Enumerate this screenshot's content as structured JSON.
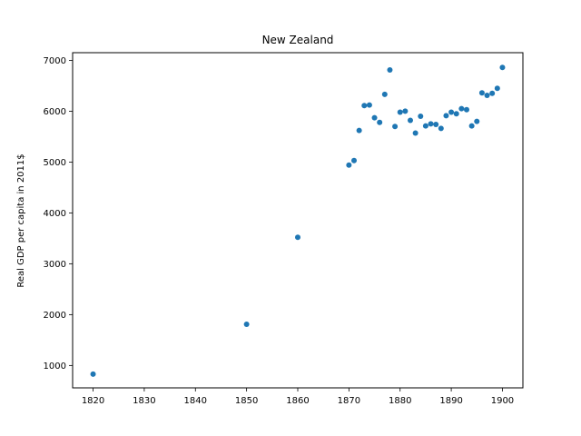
{
  "chart_data": {
    "type": "scatter",
    "title": "New Zealand",
    "xlabel": "",
    "ylabel": "Real GDP per capita in 2011$",
    "xlim": [
      1816,
      1904
    ],
    "ylim": [
      560,
      7150
    ],
    "xticks": [
      1820,
      1830,
      1840,
      1850,
      1860,
      1870,
      1880,
      1890,
      1900
    ],
    "yticks": [
      1000,
      2000,
      3000,
      4000,
      5000,
      6000,
      7000
    ],
    "grid": false,
    "color": "#1f77b4",
    "points": [
      {
        "x": 1820,
        "y": 830
      },
      {
        "x": 1850,
        "y": 1810
      },
      {
        "x": 1860,
        "y": 3520
      },
      {
        "x": 1870,
        "y": 4940
      },
      {
        "x": 1871,
        "y": 5030
      },
      {
        "x": 1872,
        "y": 5620
      },
      {
        "x": 1873,
        "y": 6110
      },
      {
        "x": 1874,
        "y": 6120
      },
      {
        "x": 1875,
        "y": 5870
      },
      {
        "x": 1876,
        "y": 5780
      },
      {
        "x": 1877,
        "y": 6330
      },
      {
        "x": 1878,
        "y": 6810
      },
      {
        "x": 1879,
        "y": 5700
      },
      {
        "x": 1880,
        "y": 5980
      },
      {
        "x": 1881,
        "y": 6000
      },
      {
        "x": 1882,
        "y": 5820
      },
      {
        "x": 1883,
        "y": 5570
      },
      {
        "x": 1884,
        "y": 5900
      },
      {
        "x": 1885,
        "y": 5710
      },
      {
        "x": 1886,
        "y": 5750
      },
      {
        "x": 1887,
        "y": 5740
      },
      {
        "x": 1888,
        "y": 5660
      },
      {
        "x": 1889,
        "y": 5910
      },
      {
        "x": 1890,
        "y": 5980
      },
      {
        "x": 1891,
        "y": 5950
      },
      {
        "x": 1892,
        "y": 6050
      },
      {
        "x": 1893,
        "y": 6030
      },
      {
        "x": 1894,
        "y": 5710
      },
      {
        "x": 1895,
        "y": 5800
      },
      {
        "x": 1896,
        "y": 6360
      },
      {
        "x": 1897,
        "y": 6310
      },
      {
        "x": 1898,
        "y": 6350
      },
      {
        "x": 1899,
        "y": 6450
      },
      {
        "x": 1900,
        "y": 6860
      }
    ]
  }
}
